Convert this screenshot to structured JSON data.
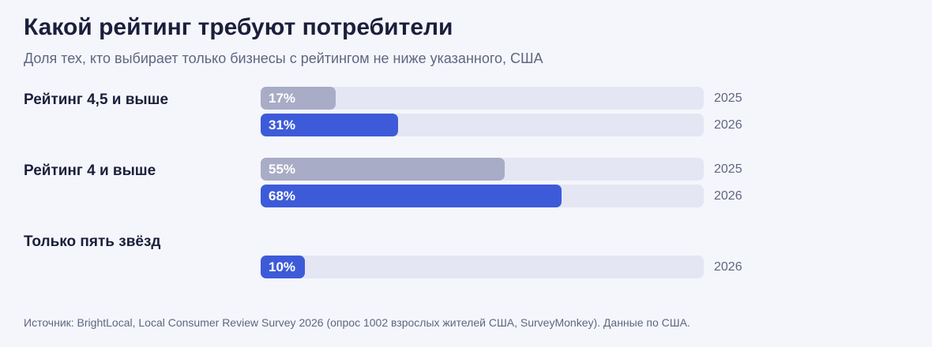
{
  "header": {
    "title": "Какой рейтинг требуют потребители",
    "subtitle": "Доля тех, кто выбирает только бизнесы с рейтингом не ниже указанного, США"
  },
  "colors": {
    "background": "#f5f6fb",
    "track": "#e4e6f4",
    "series_2025": "#a8acc6",
    "series_2026": "#3d5bd9"
  },
  "chart_data": {
    "type": "bar",
    "orientation": "horizontal",
    "xlim": [
      0,
      100
    ],
    "unit": "%",
    "series_names": [
      "2025",
      "2026"
    ],
    "groups": [
      {
        "label": "Рейтинг 4,5 и выше",
        "bars": [
          {
            "year": "2025",
            "value": 17,
            "label": "17%"
          },
          {
            "year": "2026",
            "value": 31,
            "label": "31%"
          }
        ]
      },
      {
        "label": "Рейтинг 4 и выше",
        "bars": [
          {
            "year": "2025",
            "value": 55,
            "label": "55%"
          },
          {
            "year": "2026",
            "value": 68,
            "label": "68%"
          }
        ]
      },
      {
        "label": "Только пять звёзд",
        "bars": [
          {
            "year": "2026",
            "value": 10,
            "label": "10%"
          }
        ]
      }
    ]
  },
  "footer": {
    "source": "Источник: BrightLocal, Local Consumer Review Survey 2026 (опрос 1002 взрослых жителей США, SurveyMonkey). Данные по США."
  }
}
